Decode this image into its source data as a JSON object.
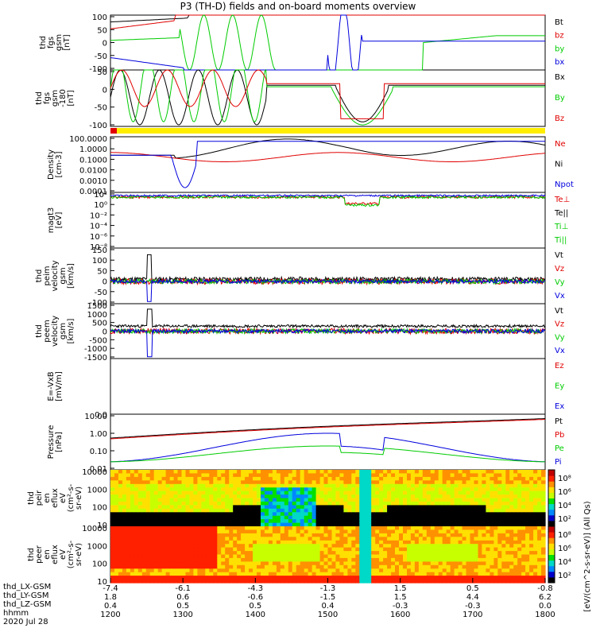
{
  "title": "P3 (TH-D) fields and on-board moments overview",
  "colors": {
    "black": "#000000",
    "red": "#e00000",
    "green": "#00cc00",
    "blue": "#0000dd",
    "yellow": "#ffee00"
  },
  "chart_data": [
    {
      "type": "line",
      "panel": "fgs",
      "ylabel_lines": [
        "thd",
        "fgs",
        "gsm",
        "[nT]"
      ],
      "ylim": [
        -100,
        100
      ],
      "ytick_labels": [
        "100",
        "50",
        "0",
        "-50",
        "-100"
      ],
      "legend": [
        {
          "name": "Bt",
          "color": "black"
        },
        {
          "name": "bz",
          "color": "red"
        },
        {
          "name": "by",
          "color": "green"
        },
        {
          "name": "bx",
          "color": "blue"
        }
      ]
    },
    {
      "type": "line",
      "panel": "fgs-180",
      "ylabel_lines": [
        "thd",
        "fgs",
        "gsm",
        "-180",
        "[nT]"
      ],
      "ylim": [
        -125,
        60
      ],
      "ytick_labels": [
        "50",
        "0",
        "-50",
        "-100"
      ],
      "legend": [
        {
          "name": "Bx",
          "color": "black"
        },
        {
          "name": "By",
          "color": "green"
        },
        {
          "name": "Bz",
          "color": "red"
        }
      ]
    },
    {
      "type": "line",
      "panel": "density",
      "ylabel_lines": [
        "Density",
        "[cm-3]"
      ],
      "scale": "log",
      "ylim": [
        0.0001,
        100
      ],
      "ytick_labels": [
        "100.0000",
        "1.0000",
        "0.1000",
        "0.0100",
        "0.0010",
        "0.0001"
      ],
      "legend": [
        {
          "name": "Ne",
          "color": "red"
        },
        {
          "name": "Ni",
          "color": "black"
        },
        {
          "name": "Npot",
          "color": "blue"
        }
      ]
    },
    {
      "type": "line",
      "panel": "temperature",
      "ylabel_lines": [
        "magt3",
        "[eV]"
      ],
      "scale": "log",
      "ytick_labels": [
        "10²",
        "10⁰",
        "10⁻²",
        "10⁻⁴",
        "10⁻⁶",
        "10⁻⁸"
      ],
      "legend": [
        {
          "name": "Te⊥",
          "color": "red"
        },
        {
          "name": "Te||",
          "color": "black"
        },
        {
          "name": "Ti⊥",
          "color": "green"
        },
        {
          "name": "Ti||",
          "color": "green"
        }
      ]
    },
    {
      "type": "line",
      "panel": "peim velocity",
      "ylabel_lines": [
        "thd",
        "peim",
        "velocity",
        "gsm",
        "[km/s]"
      ],
      "ylim": [
        -100,
        150
      ],
      "ytick_labels": [
        "150",
        "100",
        "50",
        "0",
        "-50",
        "-100"
      ],
      "legend": [
        {
          "name": "Vt",
          "color": "black"
        },
        {
          "name": "Vz",
          "color": "red"
        },
        {
          "name": "Vy",
          "color": "green"
        },
        {
          "name": "Vx",
          "color": "blue"
        }
      ]
    },
    {
      "type": "line",
      "panel": "peem velocity",
      "ylabel_lines": [
        "thd",
        "peem",
        "velocity",
        "gsm",
        "[km/s]"
      ],
      "ylim": [
        -1500,
        1500
      ],
      "ytick_labels": [
        "1500",
        "1000",
        "500",
        "0",
        "-500",
        "-1000",
        "-1500"
      ],
      "legend": [
        {
          "name": "Vt",
          "color": "black"
        },
        {
          "name": "Vz",
          "color": "red"
        },
        {
          "name": "Vy",
          "color": "green"
        },
        {
          "name": "Vx",
          "color": "blue"
        }
      ]
    },
    {
      "type": "line",
      "panel": "E=-VxB",
      "ylabel_lines": [
        "E=-VxB",
        "[mV/m]"
      ],
      "ylim": [
        0,
        1
      ],
      "ytick_labels": [
        "0.0"
      ],
      "legend": [
        {
          "name": "Ez",
          "color": "red"
        },
        {
          "name": "Ey",
          "color": "green"
        },
        {
          "name": "Ex",
          "color": "blue"
        }
      ]
    },
    {
      "type": "line",
      "panel": "pressure",
      "ylabel_lines": [
        "Pressure",
        "[nPa]"
      ],
      "scale": "log",
      "ylim": [
        0.005,
        20
      ],
      "ytick_labels": [
        "10.00",
        "1.00",
        "0.10",
        "0.01"
      ],
      "legend": [
        {
          "name": "Pt",
          "color": "black"
        },
        {
          "name": "Pb",
          "color": "red"
        },
        {
          "name": "Pe",
          "color": "green"
        },
        {
          "name": "Pi",
          "color": "blue"
        }
      ]
    },
    {
      "type": "heatmap",
      "panel": "peir",
      "ylabel_lines": [
        "thd",
        "peir",
        "en",
        "eflux",
        "eV",
        "(cm²-s-",
        "sr-eV)"
      ],
      "scale": "log",
      "ytick_labels": [
        "10000",
        "1000",
        "100",
        "10"
      ],
      "colorbar_tick_labels": [
        "10⁸",
        "10⁶",
        "10⁴",
        "10²"
      ]
    },
    {
      "type": "heatmap",
      "panel": "peer",
      "ylabel_lines": [
        "thd",
        "peer",
        "en",
        "eflux",
        "eV",
        "(cm²-s-",
        "sr-eV)"
      ],
      "scale": "log",
      "ytick_labels": [
        "10000",
        "1000",
        "100",
        "10"
      ],
      "colorbar_tick_labels": [
        "10⁸",
        "10⁶",
        "10⁴",
        "10²"
      ],
      "colorbar_label": "[eV/(cm^2-s-sr-eV)] (All Qs)"
    }
  ],
  "x_axis": {
    "rows": [
      {
        "label": "thd_LX-GSM",
        "values": [
          "-7.4",
          "-6.1",
          "-4.3",
          "-1.3",
          "1.5",
          "0.5",
          "-0.8"
        ]
      },
      {
        "label": "thd_LY-GSM",
        "values": [
          "1.8",
          "0.6",
          "-0.6",
          "-1.5",
          "1.5",
          "4.4",
          "6.2"
        ]
      },
      {
        "label": "thd_LZ-GSM",
        "values": [
          "0.4",
          "0.5",
          "0.5",
          "0.4",
          "-0.3",
          "-0.3",
          "0.0"
        ]
      },
      {
        "label": "hhmm",
        "values": [
          "1200",
          "1300",
          "1400",
          "1500",
          "1600",
          "1700",
          "1800"
        ]
      }
    ],
    "date": "2020 Jul 28"
  }
}
